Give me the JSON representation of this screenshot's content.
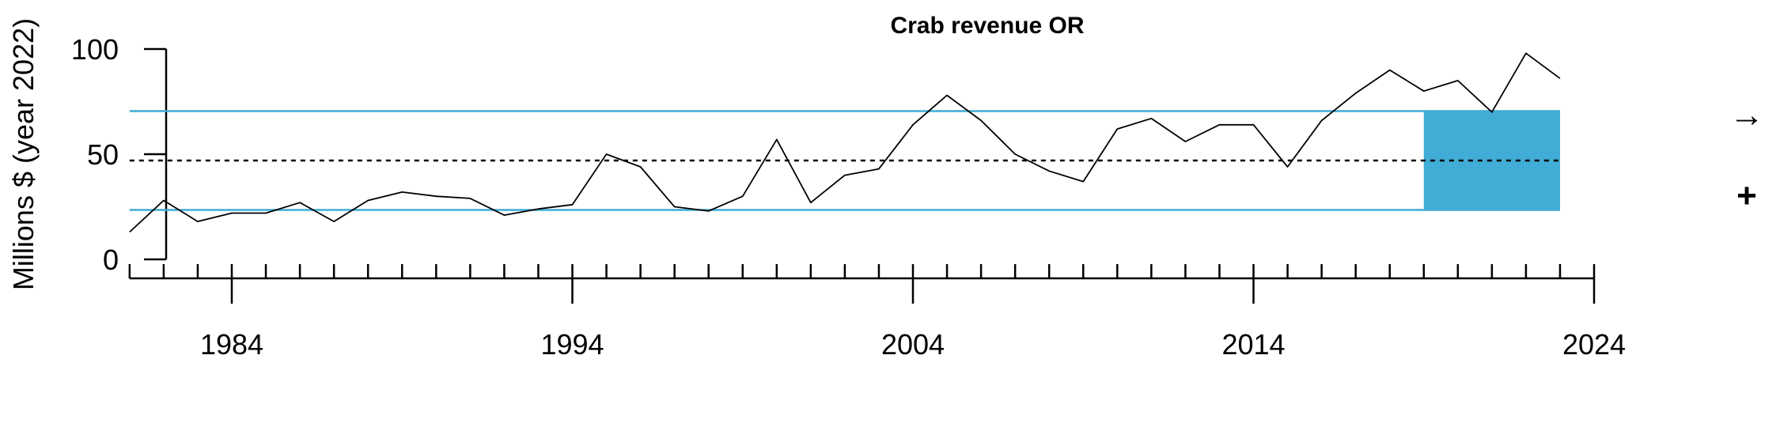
{
  "chart_data": {
    "type": "line",
    "title": "Crab revenue OR",
    "ylabel": "Millions $ (year 2022)",
    "xlabel": "",
    "x_tick_labels": [
      "1984",
      "1994",
      "2004",
      "2014",
      "2024"
    ],
    "y_tick_labels": [
      "0",
      "50",
      "100"
    ],
    "xlim": [
      1981,
      2024
    ],
    "ylim": [
      0,
      100
    ],
    "years": [
      1981,
      1982,
      1983,
      1984,
      1985,
      1986,
      1987,
      1988,
      1989,
      1990,
      1991,
      1992,
      1993,
      1994,
      1995,
      1996,
      1997,
      1998,
      1999,
      2000,
      2001,
      2002,
      2003,
      2004,
      2005,
      2006,
      2007,
      2008,
      2009,
      2010,
      2011,
      2012,
      2013,
      2014,
      2015,
      2016,
      2017,
      2018,
      2019,
      2020,
      2021,
      2022,
      2023
    ],
    "values": [
      13,
      28,
      18,
      22,
      22,
      27,
      18,
      28,
      32,
      30,
      29,
      21,
      24,
      26,
      50,
      44,
      25,
      23,
      30,
      57,
      27,
      40,
      43,
      64,
      78,
      66,
      50,
      42,
      37,
      62,
      67,
      56,
      64,
      64,
      44,
      66,
      79,
      90,
      80,
      85,
      70,
      98,
      86
    ],
    "mean": 47,
    "sd_upper": 70.5,
    "sd_lower": 23.5,
    "highlight_start": 2019,
    "highlight_end": 2023,
    "trend_symbol": "→",
    "level_symbol": "+",
    "colors": {
      "line": "#000000",
      "band": "#41acd5",
      "sd_lines": "#41acd5",
      "mean_line": "#000000"
    }
  }
}
